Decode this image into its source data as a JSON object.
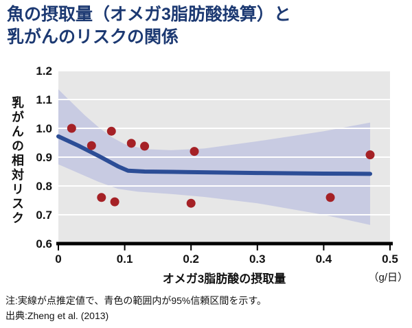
{
  "title": {
    "line1": "魚の摂取量（オメガ3脂肪酸換算）と",
    "line2": "乳がんのリスクの関係"
  },
  "notes": {
    "line1": "注:実線が点推定値で、青色の範囲内が95%信頼区間を示す。",
    "line2": "出典:Zheng et al. (2013)"
  },
  "colors": {
    "title": "#1c3972",
    "plot_bg": "#e7e7e7",
    "band": "#c8cbe2",
    "line": "#2c4d96",
    "point": "#a52126",
    "axis": "#000000",
    "grid": "#ffffff",
    "text": "#111111"
  },
  "chart_data": {
    "type": "line",
    "title": "魚の摂取量（オメガ3脂肪酸換算）と乳がんのリスクの関係",
    "xlabel": "オメガ3脂肪酸の摂取量",
    "x_unit": "（g/日）",
    "ylabel": "乳がんの相対リスク",
    "xlim": [
      0,
      0.5
    ],
    "ylim": [
      0.6,
      1.2
    ],
    "x_ticks": [
      0,
      0.1,
      0.2,
      0.3,
      0.4,
      0.5
    ],
    "x_tick_labels": [
      "0",
      "0.1",
      "0.2",
      "0.3",
      "0.4",
      "0.5"
    ],
    "y_ticks": [
      0.6,
      0.7,
      0.8,
      0.9,
      1.0,
      1.1,
      1.2
    ],
    "y_tick_labels": [
      "0.6",
      "0.7",
      "0.8",
      "0.9",
      "1.0",
      "1.1",
      "1.2"
    ],
    "grid": "horizontal-white",
    "legend": "none",
    "estimate_line": {
      "name": "点推定値（実線）",
      "points": [
        [
          0,
          0.972
        ],
        [
          0.03,
          0.94
        ],
        [
          0.06,
          0.905
        ],
        [
          0.09,
          0.868
        ],
        [
          0.105,
          0.853
        ],
        [
          0.13,
          0.85
        ],
        [
          0.2,
          0.848
        ],
        [
          0.3,
          0.845
        ],
        [
          0.4,
          0.843
        ],
        [
          0.47,
          0.842
        ]
      ]
    },
    "confidence_band": {
      "name": "95%信頼区間",
      "upper": [
        [
          0,
          1.135
        ],
        [
          0.02,
          1.09
        ],
        [
          0.04,
          1.045
        ],
        [
          0.06,
          1.005
        ],
        [
          0.08,
          0.97
        ],
        [
          0.1,
          0.945
        ],
        [
          0.13,
          0.928
        ],
        [
          0.17,
          0.924
        ],
        [
          0.22,
          0.93
        ],
        [
          0.3,
          0.955
        ],
        [
          0.4,
          0.99
        ],
        [
          0.47,
          1.02
        ]
      ],
      "lower": [
        [
          0,
          0.875
        ],
        [
          0.03,
          0.845
        ],
        [
          0.06,
          0.815
        ],
        [
          0.09,
          0.79
        ],
        [
          0.12,
          0.78
        ],
        [
          0.17,
          0.772
        ],
        [
          0.22,
          0.762
        ],
        [
          0.3,
          0.74
        ],
        [
          0.4,
          0.7
        ],
        [
          0.47,
          0.665
        ]
      ]
    },
    "scatter_points": [
      [
        0.02,
        1.0
      ],
      [
        0.05,
        0.94
      ],
      [
        0.065,
        0.76
      ],
      [
        0.08,
        0.99
      ],
      [
        0.085,
        0.745
      ],
      [
        0.11,
        0.948
      ],
      [
        0.13,
        0.938
      ],
      [
        0.2,
        0.74
      ],
      [
        0.205,
        0.92
      ],
      [
        0.41,
        0.76
      ],
      [
        0.47,
        0.908
      ]
    ]
  }
}
